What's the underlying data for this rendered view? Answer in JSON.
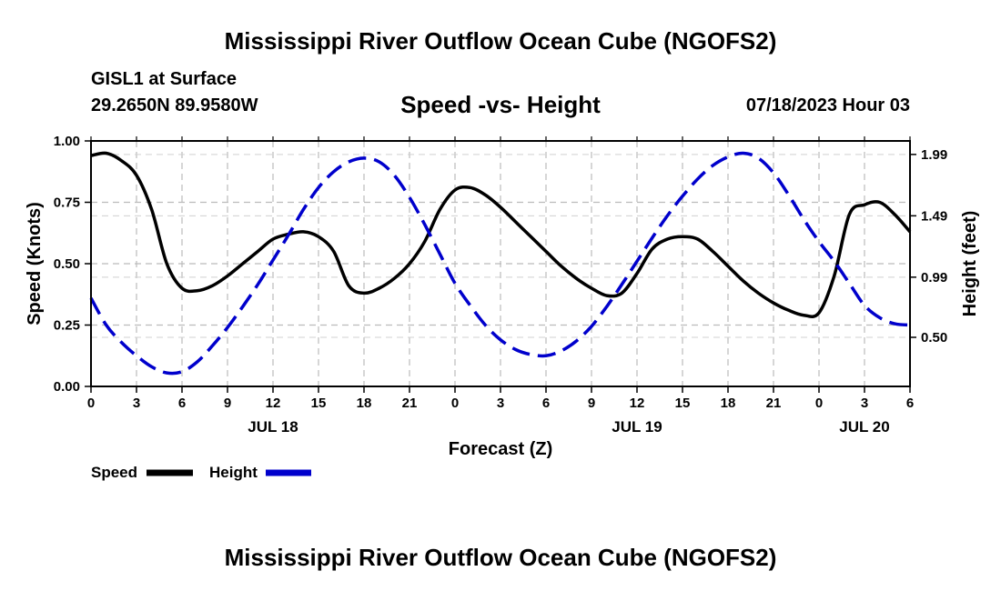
{
  "header": {
    "title": "Mississippi River Outflow Ocean Cube (NGOFS2)",
    "station": "GISL1 at Surface",
    "coords": "29.2650N  89.9580W",
    "subtitle": "Speed -vs- Height",
    "datetime": "07/18/2023 Hour 03"
  },
  "footer": {
    "title": "Mississippi River Outflow Ocean Cube (NGOFS2)"
  },
  "legend": {
    "speed_label": "Speed",
    "height_label": "Height"
  },
  "chart_data": {
    "type": "line",
    "title": "Speed -vs- Height",
    "xlabel": "Forecast (Z)",
    "ylabel": "Speed (Knots)",
    "y2label": "Height (feet)",
    "x_hours_range": [
      0,
      54
    ],
    "x_ticks": [
      0,
      3,
      6,
      9,
      12,
      15,
      18,
      21,
      24,
      27,
      30,
      33,
      36,
      39,
      42,
      45,
      48,
      51,
      54
    ],
    "x_tick_labels": [
      "0",
      "3",
      "6",
      "9",
      "12",
      "15",
      "18",
      "21",
      "0",
      "3",
      "6",
      "9",
      "12",
      "15",
      "18",
      "21",
      "0",
      "3",
      "6"
    ],
    "date_labels": [
      {
        "hour": 12,
        "label": "JUL 18"
      },
      {
        "hour": 36,
        "label": "JUL 19"
      },
      {
        "hour": 51,
        "label": "JUL 20"
      }
    ],
    "ylim": [
      0,
      1
    ],
    "y_ticks": [
      0,
      0.25,
      0.5,
      0.75,
      1.0
    ],
    "y_tick_labels": [
      "0.00",
      "0.25",
      "0.50",
      "0.75",
      "1.00"
    ],
    "y2lim": [
      0.1,
      2.1
    ],
    "y2_ticks": [
      0.5,
      0.99,
      1.49,
      1.99
    ],
    "y2_tick_labels": [
      "0.50",
      "0.99",
      "1.49",
      "1.99"
    ],
    "series": [
      {
        "name": "Speed",
        "axis": "left",
        "color": "#000000",
        "dash": "solid",
        "x": [
          0,
          1,
          2,
          3,
          4,
          5,
          6,
          7,
          8,
          9,
          10,
          11,
          12,
          13,
          14,
          15,
          16,
          17,
          18,
          19,
          20,
          21,
          22,
          23,
          24,
          25,
          26,
          27,
          28,
          29,
          30,
          31,
          32,
          33,
          34,
          35,
          36,
          37,
          38,
          39,
          40,
          41,
          42,
          43,
          44,
          45,
          46,
          47,
          48,
          49,
          50,
          51,
          52,
          53,
          54
        ],
        "values": [
          0.94,
          0.95,
          0.92,
          0.86,
          0.72,
          0.5,
          0.4,
          0.39,
          0.41,
          0.45,
          0.5,
          0.55,
          0.6,
          0.62,
          0.63,
          0.61,
          0.55,
          0.41,
          0.38,
          0.4,
          0.44,
          0.5,
          0.59,
          0.72,
          0.8,
          0.81,
          0.78,
          0.73,
          0.67,
          0.61,
          0.55,
          0.49,
          0.44,
          0.4,
          0.37,
          0.38,
          0.46,
          0.56,
          0.6,
          0.61,
          0.6,
          0.55,
          0.49,
          0.43,
          0.38,
          0.34,
          0.31,
          0.29,
          0.3,
          0.45,
          0.7,
          0.74,
          0.75,
          0.7,
          0.63
        ]
      },
      {
        "name": "Height",
        "axis": "right",
        "color": "#0000cc",
        "dash": "dashed",
        "x": [
          0,
          1,
          2,
          3,
          4,
          5,
          6,
          7,
          8,
          9,
          10,
          11,
          12,
          13,
          14,
          15,
          16,
          17,
          18,
          19,
          20,
          21,
          22,
          23,
          24,
          25,
          26,
          27,
          28,
          29,
          30,
          31,
          32,
          33,
          34,
          35,
          36,
          37,
          38,
          39,
          40,
          41,
          42,
          43,
          44,
          45,
          46,
          47,
          48,
          49,
          50,
          51,
          52,
          53,
          54
        ],
        "values": [
          0.82,
          0.6,
          0.46,
          0.35,
          0.26,
          0.21,
          0.22,
          0.3,
          0.43,
          0.58,
          0.75,
          0.93,
          1.13,
          1.33,
          1.54,
          1.72,
          1.85,
          1.93,
          1.96,
          1.93,
          1.82,
          1.64,
          1.42,
          1.18,
          0.94,
          0.76,
          0.6,
          0.48,
          0.4,
          0.36,
          0.35,
          0.39,
          0.47,
          0.59,
          0.75,
          0.93,
          1.12,
          1.31,
          1.49,
          1.65,
          1.79,
          1.9,
          1.97,
          2.0,
          1.96,
          1.84,
          1.66,
          1.46,
          1.28,
          1.12,
          0.94,
          0.76,
          0.66,
          0.61,
          0.6
        ]
      }
    ]
  }
}
